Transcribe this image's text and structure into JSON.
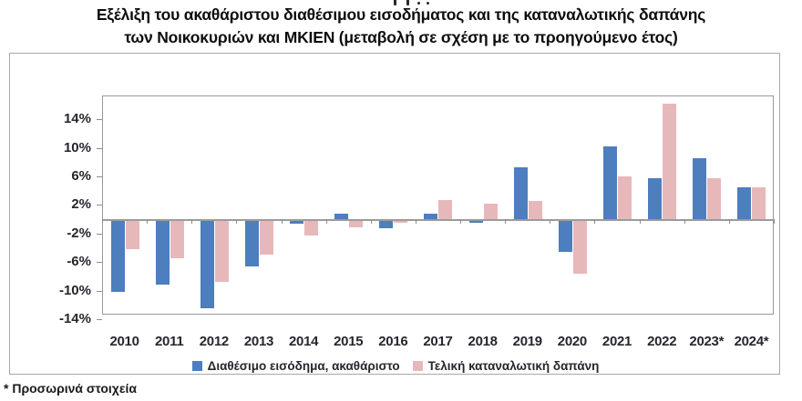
{
  "title": {
    "line1": "Εξέλιξη του ακαθάριστου διαθέσιμου εισοδήματος και της καταναλωτικής δαπάνης",
    "line2": "των Νοικοκυριών και ΜΚΙΕΝ (μεταβολή σε σχέση με το προηγούμενο έτος)"
  },
  "footnote": "* Προσωρινά στοιχεία",
  "colors": {
    "income_bar": "#4d7ebd",
    "consumption_bar": "#e7b8ba",
    "frame": "#a9a9a9",
    "axis_line": "#9b9b9b",
    "axis_text": "#26262e"
  },
  "chart_data": {
    "type": "bar",
    "categories": [
      "2010",
      "2011",
      "2012",
      "2013",
      "2014",
      "2015",
      "2016",
      "2017",
      "2018",
      "2019",
      "2020",
      "2021",
      "2022",
      "2023*",
      "2024*"
    ],
    "series": [
      {
        "name": "Διαθέσιμο εισόδημα, ακαθάριστο",
        "color": "#4d7ebd",
        "values": [
          -10.1,
          -9.0,
          -12.4,
          -6.5,
          -0.5,
          0.8,
          -1.1,
          0.8,
          -0.4,
          7.2,
          -4.4,
          10.2,
          5.7,
          8.5,
          4.4
        ]
      },
      {
        "name": "Τελική καταναλωτική δαπάνη",
        "color": "#e7b8ba",
        "values": [
          -4.1,
          -5.3,
          -8.6,
          -4.8,
          -2.2,
          -1.0,
          -0.4,
          2.7,
          2.2,
          2.6,
          -7.5,
          6.0,
          16.2,
          5.7,
          4.5
        ]
      }
    ],
    "unit": "%",
    "yticks": [
      14,
      10,
      6,
      2,
      -2,
      -6,
      -10,
      -14
    ],
    "ytick_labels": [
      "14%",
      "10%",
      "6%",
      "2%",
      "-2%",
      "-6%",
      "-10%",
      "-14%"
    ],
    "ylim": [
      -14.5,
      17.3
    ],
    "grid": false,
    "legend_position": "bottom"
  }
}
